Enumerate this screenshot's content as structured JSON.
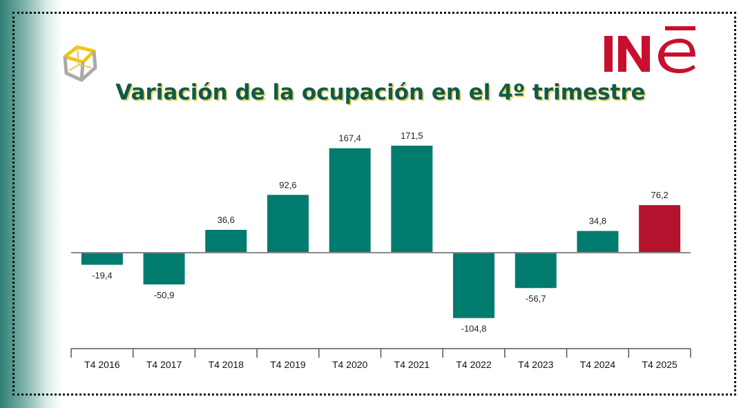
{
  "logo_text": "INE",
  "chart_data": {
    "type": "bar",
    "title": "Variación de la ocupación en el 4º trimestre",
    "categories": [
      "T4 2016",
      "T4 2017",
      "T4 2018",
      "T4 2019",
      "T4 2020",
      "T4 2021",
      "T4 2022",
      "T4 2023",
      "T4 2024",
      "T4 2025"
    ],
    "values": [
      -19.4,
      -50.9,
      36.6,
      92.6,
      167.4,
      171.5,
      -104.8,
      -56.7,
      34.8,
      76.2
    ],
    "labels": [
      "-19,4",
      "-50,9",
      "36,6",
      "92,6",
      "167,4",
      "171,5",
      "-104,8",
      "-56,7",
      "34,8",
      "76,2"
    ],
    "colors": [
      "#007b6e",
      "#007b6e",
      "#007b6e",
      "#007b6e",
      "#007b6e",
      "#007b6e",
      "#007b6e",
      "#007b6e",
      "#007b6e",
      "#b5122e"
    ],
    "xlabel": "",
    "ylabel": "",
    "grid": false
  }
}
